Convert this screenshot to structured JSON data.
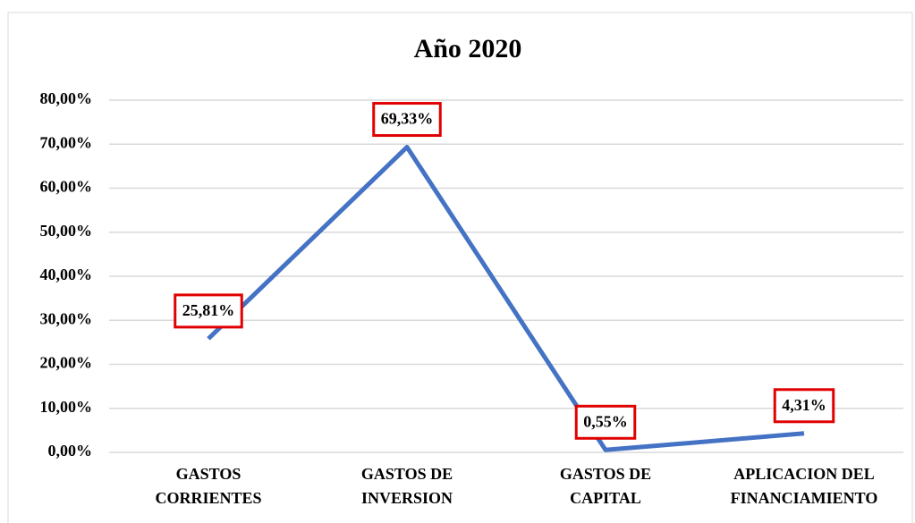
{
  "chart_data": {
    "type": "line",
    "title": "Año 2020",
    "categories": [
      "GASTOS\nCORRIENTES",
      "GASTOS DE\nINVERSION",
      "GASTOS DE\nCAPITAL",
      "APLICACION DEL\nFINANCIAMIENTO"
    ],
    "series": [
      {
        "name": "Año 2020",
        "color": "#4472c4",
        "values": [
          25.81,
          69.33,
          0.55,
          4.31
        ],
        "value_labels": [
          "25,81%",
          "69,33%",
          "0,55%",
          "4,31%"
        ]
      }
    ],
    "ylim": [
      0,
      80
    ],
    "yticks": [
      {
        "value": 0,
        "label": "0,00%"
      },
      {
        "value": 10,
        "label": "10,00%"
      },
      {
        "value": 20,
        "label": "20,00%"
      },
      {
        "value": 30,
        "label": "30,00%"
      },
      {
        "value": 40,
        "label": "40,00%"
      },
      {
        "value": 50,
        "label": "50,00%"
      },
      {
        "value": 60,
        "label": "60,00%"
      },
      {
        "value": 70,
        "label": "70,00%"
      },
      {
        "value": 80,
        "label": "80,00%"
      }
    ],
    "grid": true
  }
}
